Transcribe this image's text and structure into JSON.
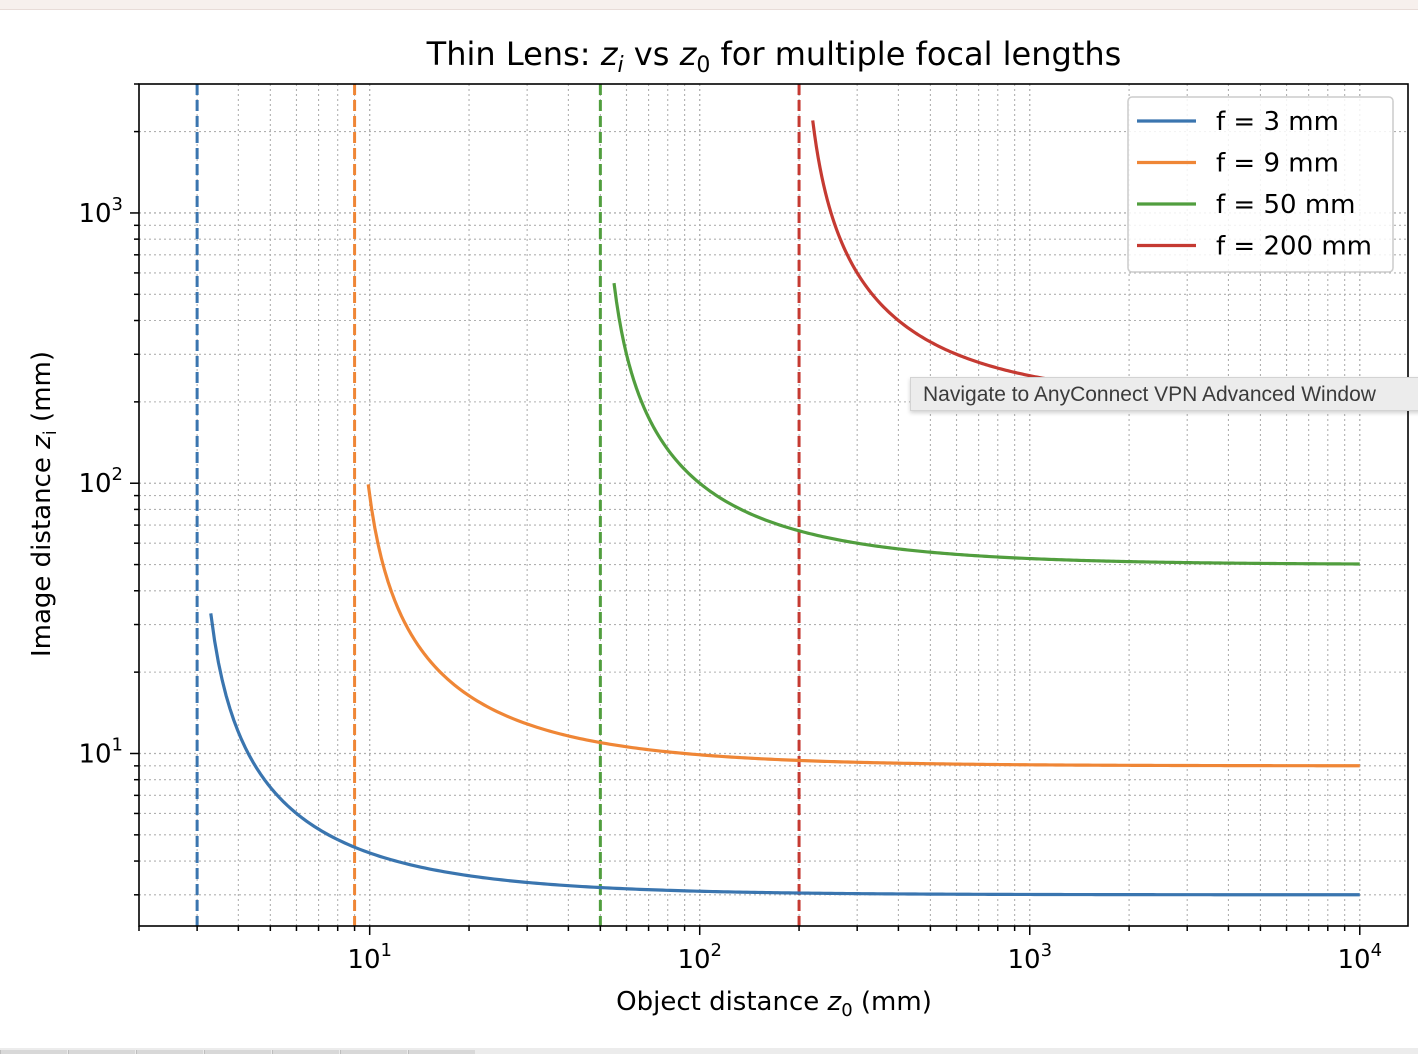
{
  "window": {
    "tooltip_text": "Navigate to AnyConnect VPN Advanced Window"
  },
  "chart_data": {
    "type": "line",
    "title": "Thin Lens: z_i vs z_0 for multiple focal lengths",
    "title_parts": {
      "before": "Thin Lens: ",
      "z": "z",
      "i": "i",
      "mid": " vs ",
      "z0": "z",
      "zero": "0",
      "after": " for multiple focal lengths"
    },
    "xlabel": "Object distance z_0 (mm)",
    "xlabel_parts": {
      "before": "Object distance ",
      "z": "z",
      "sub": "0",
      "after": " (mm)"
    },
    "ylabel": "Image distance z_i (mm)",
    "ylabel_parts": {
      "before": "Image distance ",
      "z": "z",
      "sub": "i",
      "after": " (mm)"
    },
    "x_scale": "log",
    "y_scale": "log",
    "xlim": [
      2,
      14000
    ],
    "ylim": [
      2.3,
      3000
    ],
    "x_ticks": [
      {
        "value": 10,
        "base": "10",
        "exp": "1"
      },
      {
        "value": 100,
        "base": "10",
        "exp": "2"
      },
      {
        "value": 1000,
        "base": "10",
        "exp": "3"
      },
      {
        "value": 10000,
        "base": "10",
        "exp": "4"
      }
    ],
    "y_ticks": [
      {
        "value": 10,
        "base": "10",
        "exp": "1"
      },
      {
        "value": 100,
        "base": "10",
        "exp": "2"
      },
      {
        "value": 1000,
        "base": "10",
        "exp": "3"
      }
    ],
    "grid": "both, dotted",
    "legend_position": "top-right",
    "series": [
      {
        "name": "f = 3 mm",
        "focal_length": 3,
        "color": "#3a75af",
        "x_start": 3.3,
        "x_end": 10000
      },
      {
        "name": "f = 9 mm",
        "focal_length": 9,
        "color": "#ef8636",
        "x_start": 9.9,
        "x_end": 10000
      },
      {
        "name": "f = 50 mm",
        "focal_length": 50,
        "color": "#519e3e",
        "x_start": 55,
        "x_end": 10000
      },
      {
        "name": "f = 200 mm",
        "focal_length": 200,
        "color": "#c53a32",
        "x_start": 220,
        "x_end": 10000
      }
    ],
    "vertical_lines": [
      {
        "x": 3,
        "color": "#3a75af",
        "style": "dashed"
      },
      {
        "x": 9,
        "color": "#ef8636",
        "style": "dashed"
      },
      {
        "x": 50,
        "color": "#519e3e",
        "style": "dashed"
      },
      {
        "x": 200,
        "color": "#c53a32",
        "style": "dashed"
      }
    ]
  }
}
